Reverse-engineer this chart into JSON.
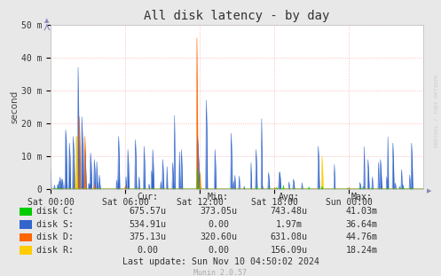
{
  "title": "All disk latency - by day",
  "ylabel": "second",
  "background_color": "#e8e8e8",
  "plot_bg_color": "#ffffff",
  "grid_color": "#ffaaaa",
  "ytick_labels": [
    "0",
    "10 m",
    "20 m",
    "30 m",
    "40 m",
    "50 m"
  ],
  "xtick_labels": [
    "Sat 00:00",
    "Sat 06:00",
    "Sat 12:00",
    "Sat 18:00",
    "Sun 00:00"
  ],
  "colors": {
    "disk_C": "#00cc00",
    "disk_S": "#3366cc",
    "disk_D": "#ff6600",
    "disk_R": "#ffcc00"
  },
  "legend": [
    {
      "label": "disk C:",
      "color": "#00cc00"
    },
    {
      "label": "disk S:",
      "color": "#3366cc"
    },
    {
      "label": "disk D:",
      "color": "#ff6600"
    },
    {
      "label": "disk R:",
      "color": "#ffcc00"
    }
  ],
  "legend_cols": [
    {
      "header": "Cur:",
      "values": [
        "675.57u",
        "534.91u",
        "375.13u",
        "0.00"
      ]
    },
    {
      "header": "Min:",
      "values": [
        "373.05u",
        "0.00",
        "320.60u",
        "0.00"
      ]
    },
    {
      "header": "Avg:",
      "values": [
        "743.48u",
        "1.97m",
        "631.08u",
        "156.09u"
      ]
    },
    {
      "header": "Max:",
      "values": [
        "41.03m",
        "36.64m",
        "44.76m",
        "18.24m"
      ]
    }
  ],
  "last_update": "Last update: Sun Nov 10 04:50:02 2024",
  "munin_version": "Munin 2.0.57",
  "rrdtool_text": "RRDTOOL / TOBI OETIKER"
}
